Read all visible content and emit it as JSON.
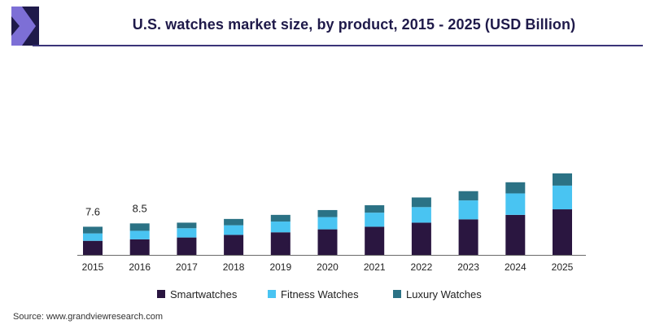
{
  "header": {
    "title": "U.S. watches market size, by product, 2015 - 2025 (USD Billion)"
  },
  "footer": {
    "source": "Source: www.grandviewresearch.com"
  },
  "colors": {
    "smartwatches": "#2a1640",
    "fitness": "#49c4f2",
    "luxury": "#2b7285",
    "logo_dark": "#1f1a4a",
    "logo_accent": "#7d6fd6"
  },
  "chart_data": {
    "type": "bar",
    "stacked": true,
    "title": "U.S. watches market size, by product, 2015 - 2025 (USD Billion)",
    "categories": [
      "2015",
      "2016",
      "2017",
      "2018",
      "2019",
      "2020",
      "2021",
      "2022",
      "2023",
      "2024",
      "2025"
    ],
    "series": [
      {
        "name": "Smartwatches",
        "values": [
          3.8,
          4.2,
          4.7,
          5.4,
          6.1,
          6.9,
          7.6,
          8.7,
          9.6,
          10.8,
          12.3
        ]
      },
      {
        "name": "Fitness Watches",
        "values": [
          2.0,
          2.3,
          2.5,
          2.6,
          2.9,
          3.3,
          3.8,
          4.2,
          5.1,
          5.8,
          6.4
        ]
      },
      {
        "name": "Luxury Watches",
        "values": [
          1.8,
          2.0,
          1.5,
          1.7,
          1.8,
          1.9,
          2.0,
          2.6,
          2.5,
          3.0,
          3.3
        ]
      }
    ],
    "data_labels": [
      {
        "category": "2015",
        "text": "7.6"
      },
      {
        "category": "2016",
        "text": "8.5"
      }
    ],
    "ylim": [
      0,
      22
    ],
    "grid": false,
    "legend_position": "bottom"
  }
}
